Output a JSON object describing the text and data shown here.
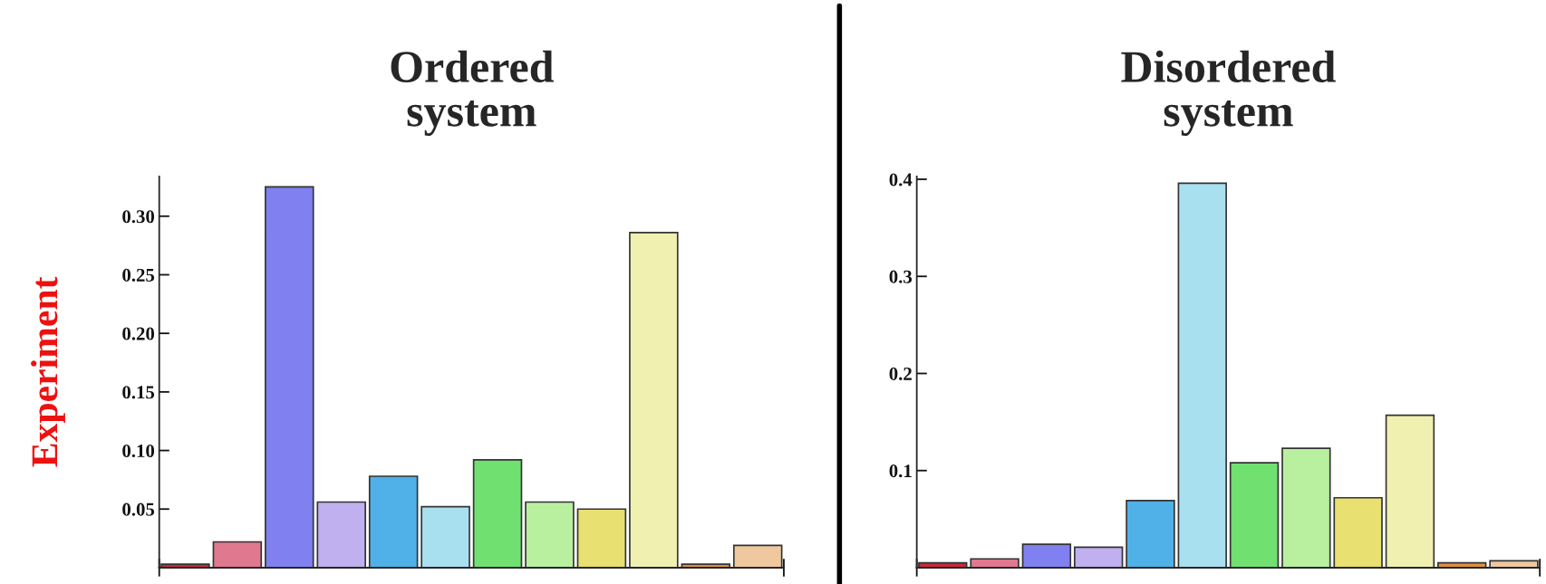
{
  "chart_data": [
    {
      "type": "bar",
      "title": "Ordered\nsystem",
      "ylabel": "Experiment",
      "categories": [
        null,
        null,
        null,
        null,
        null,
        null,
        null,
        null,
        null,
        null,
        null,
        null
      ],
      "values": [
        0.003,
        0.022,
        0.325,
        0.056,
        0.078,
        0.052,
        0.092,
        0.056,
        0.05,
        0.286,
        0.003,
        0.019
      ],
      "colors": [
        "#c8283c",
        "#e07890",
        "#8080f0",
        "#c0b0f0",
        "#50b0e8",
        "#a8e0f0",
        "#70e070",
        "#b8f0a0",
        "#e8e070",
        "#f0f0b0",
        "#e09040",
        "#f0c8a0"
      ],
      "ylim": [
        0,
        0.334
      ],
      "yticks": [
        {
          "value": 0.05,
          "label": "0.05"
        },
        {
          "value": 0.1,
          "label": "0.10"
        },
        {
          "value": 0.15,
          "label": "0.15"
        },
        {
          "value": 0.2,
          "label": "0.20"
        },
        {
          "value": 0.25,
          "label": "0.25"
        },
        {
          "value": 0.3,
          "label": "0.30"
        }
      ],
      "grid": false,
      "legend": false
    },
    {
      "type": "bar",
      "title": "Disordered\nsystem",
      "categories": [
        null,
        null,
        null,
        null,
        null,
        null,
        null,
        null,
        null,
        null,
        null,
        null
      ],
      "values": [
        0.005,
        0.009,
        0.024,
        0.021,
        0.069,
        0.396,
        0.108,
        0.123,
        0.072,
        0.157,
        0.005,
        0.007
      ],
      "colors": [
        "#c8283c",
        "#e07890",
        "#8080f0",
        "#c0b0f0",
        "#50b0e8",
        "#a8e0f0",
        "#70e070",
        "#b8f0a0",
        "#e8e070",
        "#f0f0b0",
        "#e09040",
        "#f0c8a0"
      ],
      "ylim": [
        0,
        0.403
      ],
      "yticks": [
        0.1,
        0.2,
        0.3,
        0.4
      ],
      "grid": false,
      "legend": false
    }
  ]
}
